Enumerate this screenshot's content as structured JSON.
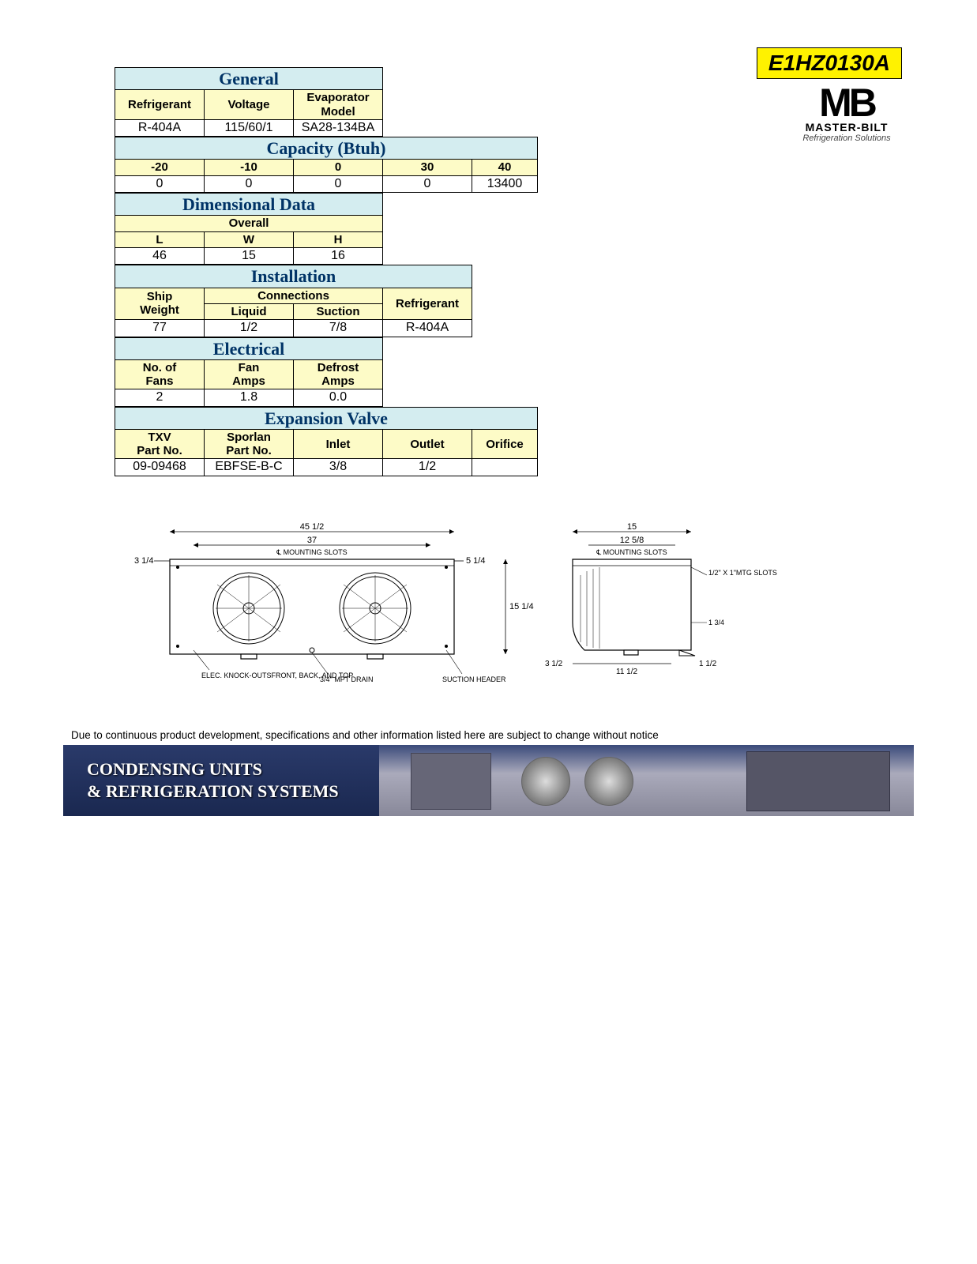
{
  "model_number": "E1HZ0130A",
  "logo": {
    "brand": "MB",
    "name": "MASTER-BILT",
    "tagline": "Refrigeration Solutions"
  },
  "colors": {
    "section_header_bg": "#d4edf0",
    "section_header_text": "#003366",
    "column_header_bg": "#fdfbc7",
    "badge_bg": "#fff200"
  },
  "general": {
    "title": "General",
    "columns": [
      "Refrigerant",
      "Voltage",
      "Evaporator\nModel"
    ],
    "values": [
      "R-404A",
      "115/60/1",
      "SA28-134BA"
    ]
  },
  "capacity": {
    "title": "Capacity (Btuh)",
    "columns": [
      "-20",
      "-10",
      "0",
      "30",
      "40"
    ],
    "values": [
      "0",
      "0",
      "0",
      "0",
      "13400"
    ]
  },
  "dimensional": {
    "title": "Dimensional Data",
    "overall_label": "Overall",
    "columns": [
      "L",
      "W",
      "H"
    ],
    "values": [
      "46",
      "15",
      "16"
    ]
  },
  "installation": {
    "title": "Installation",
    "ship_weight_label": "Ship\nWeight",
    "connections_label": "Connections",
    "conn_columns": [
      "Liquid",
      "Suction"
    ],
    "refrigerant_label": "Refrigerant",
    "values": [
      "77",
      "1/2",
      "7/8",
      "R-404A"
    ]
  },
  "electrical": {
    "title": "Electrical",
    "columns": [
      "No. of\nFans",
      "Fan\nAmps",
      "Defrost\nAmps"
    ],
    "values": [
      "2",
      "1.8",
      "0.0"
    ]
  },
  "expansion": {
    "title": "Expansion Valve",
    "columns": [
      "TXV\nPart No.",
      "Sporlan\nPart No.",
      "Inlet",
      "Outlet",
      "Orifice"
    ],
    "values": [
      "09-09468",
      "EBFSE-B-C",
      "3/8",
      "1/2",
      ""
    ]
  },
  "diagram": {
    "front": {
      "overall_width": "45 1/2",
      "slot_span": "37",
      "slot_label": "℄ MOUNTING SLOTS",
      "left_margin": "3 1/4",
      "right_margin": "5 1/4",
      "height": "15 1/4",
      "knockouts": "ELEC. KNOCK-OUTS\nFRONT, BACK, AND TOP",
      "drain": "3/4\" MPT DRAIN",
      "suction": "SUCTION HEADER"
    },
    "side": {
      "overall_width": "15",
      "slot_span": "12 5/8",
      "slot_label": "℄ MOUNTING SLOTS",
      "mtg_slots": "1/2\" X 1\"\nMTG SLOTS",
      "dim_1_3_4": "1 3/4",
      "left_margin": "3 1/2",
      "mid": "11 1/2",
      "right_margin": "1 1/2"
    }
  },
  "disclaimer": "Due to continuous product development, specifications and other information listed here are subject to change without notice",
  "banner_text": "CONDENSING UNITS\n& REFRIGERATION SYSTEMS"
}
